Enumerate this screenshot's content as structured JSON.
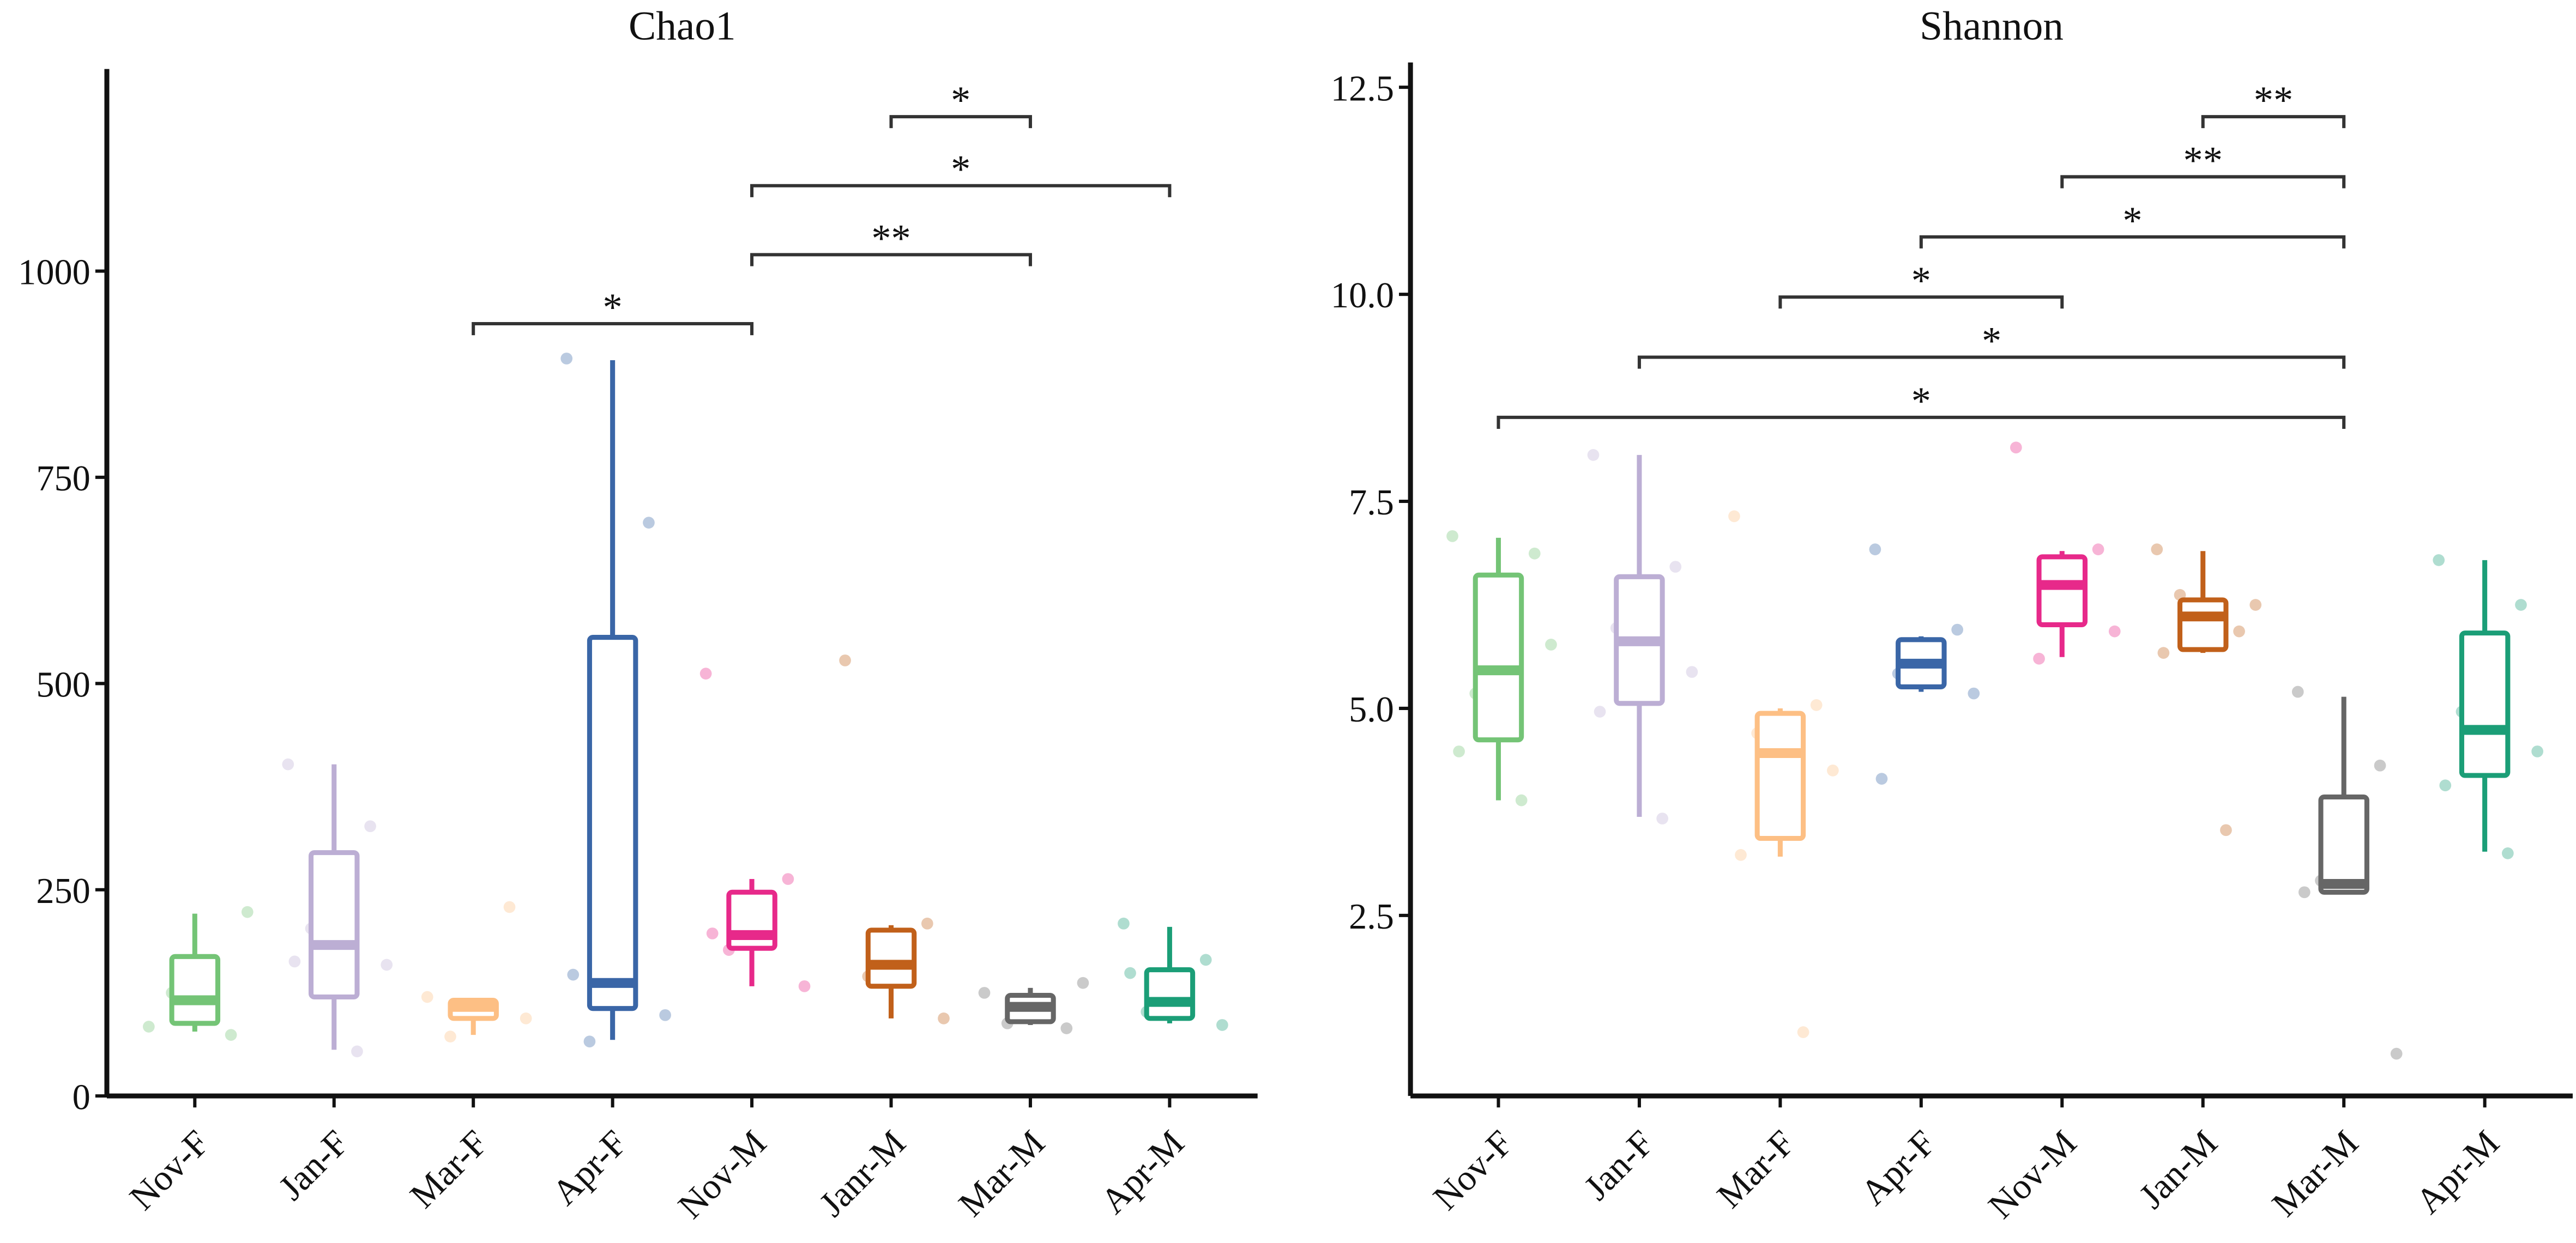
{
  "chart_data": [
    {
      "type": "box",
      "title": "Chao1",
      "categories": [
        "Nov-F",
        "Jan-F",
        "Mar-F",
        "Apr-F",
        "Nov-M",
        "Janr-M",
        "Mar-M",
        "Apr-M"
      ],
      "colors": [
        "#74c476",
        "#bcaed4",
        "#fdbf84",
        "#3a66a7",
        "#e7298a",
        "#c1601a",
        "#666666",
        "#1b9e77"
      ],
      "series": [
        {
          "min": 78,
          "q1": 88,
          "median": 116,
          "q3": 169,
          "max": 221,
          "points": [
            84,
            74,
            125,
            223
          ]
        },
        {
          "min": 56,
          "q1": 120,
          "median": 183,
          "q3": 295,
          "max": 402,
          "points": [
            402,
            327,
            203,
            159,
            163,
            54
          ]
        },
        {
          "min": 74,
          "q1": 94,
          "median": 108,
          "q3": 116,
          "max": 116,
          "points": [
            120,
            229,
            72,
            94
          ]
        },
        {
          "min": 68,
          "q1": 106,
          "median": 137,
          "q3": 556,
          "max": 892,
          "points": [
            894,
            695,
            66,
            98,
            147
          ]
        },
        {
          "min": 133,
          "q1": 179,
          "median": 195,
          "q3": 247,
          "max": 263,
          "points": [
            512,
            263,
            177,
            133,
            197
          ]
        },
        {
          "min": 94,
          "q1": 133,
          "median": 159,
          "q3": 201,
          "max": 207,
          "points": [
            528,
            209,
            145,
            94
          ]
        },
        {
          "min": 86,
          "q1": 90,
          "median": 108,
          "q3": 122,
          "max": 131,
          "points": [
            125,
            82,
            88,
            137
          ]
        },
        {
          "min": 88,
          "q1": 94,
          "median": 114,
          "q3": 153,
          "max": 205,
          "points": [
            209,
            165,
            102,
            86,
            149
          ]
        }
      ],
      "ylim": [
        0,
        1245
      ],
      "yticks": [
        0,
        250,
        500,
        750,
        1000
      ],
      "brackets": [
        {
          "from": "Mar-F",
          "to": "Nov-M",
          "label": "*"
        },
        {
          "from": "Nov-M",
          "to": "Mar-M",
          "label": "**"
        },
        {
          "from": "Nov-M",
          "to": "Apr-M",
          "label": "*"
        },
        {
          "from": "Janr-M",
          "to": "Mar-M",
          "label": "*"
        }
      ]
    },
    {
      "type": "box",
      "title": "Shannon",
      "categories": [
        "Nov-F",
        "Jan-F",
        "Mar-F",
        "Apr-F",
        "Nov-M",
        "Jan-M",
        "Mar-M",
        "Apr-M"
      ],
      "colors": [
        "#74c476",
        "#bcaed4",
        "#fdbf84",
        "#3a66a7",
        "#e7298a",
        "#c1601a",
        "#666666",
        "#1b9e77"
      ],
      "series": [
        {
          "min": 3.89,
          "q1": 4.62,
          "median": 5.46,
          "q3": 6.61,
          "max": 7.06,
          "points": [
            7.08,
            6.87,
            5.18,
            5.77,
            4.48,
            3.89
          ]
        },
        {
          "min": 3.69,
          "q1": 5.06,
          "median": 5.81,
          "q3": 6.59,
          "max": 8.06,
          "points": [
            8.06,
            6.71,
            5.97,
            5.44,
            4.96,
            3.67
          ]
        },
        {
          "min": 3.21,
          "q1": 3.43,
          "median": 4.46,
          "q3": 4.94,
          "max": 5.0,
          "points": [
            7.32,
            5.04,
            4.7,
            4.25,
            3.23,
            1.09
          ]
        },
        {
          "min": 5.2,
          "q1": 5.26,
          "median": 5.54,
          "q3": 5.83,
          "max": 5.87,
          "points": [
            6.92,
            5.95,
            5.42,
            5.18,
            4.15
          ]
        },
        {
          "min": 5.62,
          "q1": 6.01,
          "median": 6.49,
          "q3": 6.83,
          "max": 6.9,
          "points": [
            8.15,
            6.92,
            5.6,
            5.93
          ]
        },
        {
          "min": 5.67,
          "q1": 5.71,
          "median": 6.11,
          "q3": 6.31,
          "max": 6.9,
          "points": [
            6.92,
            5.93,
            6.37,
            6.25,
            5.67,
            3.53
          ]
        },
        {
          "min": 2.78,
          "q1": 2.78,
          "median": 2.88,
          "q3": 3.93,
          "max": 5.14,
          "points": [
            5.2,
            4.31,
            2.92,
            0.83,
            2.78
          ]
        },
        {
          "min": 3.27,
          "q1": 4.19,
          "median": 4.74,
          "q3": 5.91,
          "max": 6.79,
          "points": [
            6.79,
            6.25,
            4.96,
            4.48,
            4.07,
            3.25
          ]
        }
      ],
      "ylim": [
        0.32,
        12.8
      ],
      "yticks": [
        {
          "value": 2.5,
          "label": "2.5"
        },
        {
          "value": 5,
          "label": "5.0"
        },
        {
          "value": 7.5,
          "label": "7.5"
        },
        {
          "value": 10,
          "label": "10.0"
        },
        {
          "value": 12.5,
          "label": "12.5"
        }
      ],
      "brackets": [
        {
          "from": "Nov-F",
          "to": "Mar-M",
          "label": "*"
        },
        {
          "from": "Jan-F",
          "to": "Mar-M",
          "label": "*"
        },
        {
          "from": "Mar-F",
          "to": "Nov-M",
          "label": "*"
        },
        {
          "from": "Apr-F",
          "to": "Mar-M",
          "label": "*"
        },
        {
          "from": "Nov-M",
          "to": "Mar-M",
          "label": "**"
        },
        {
          "from": "Jan-M",
          "to": "Mar-M",
          "label": "**"
        }
      ]
    }
  ]
}
